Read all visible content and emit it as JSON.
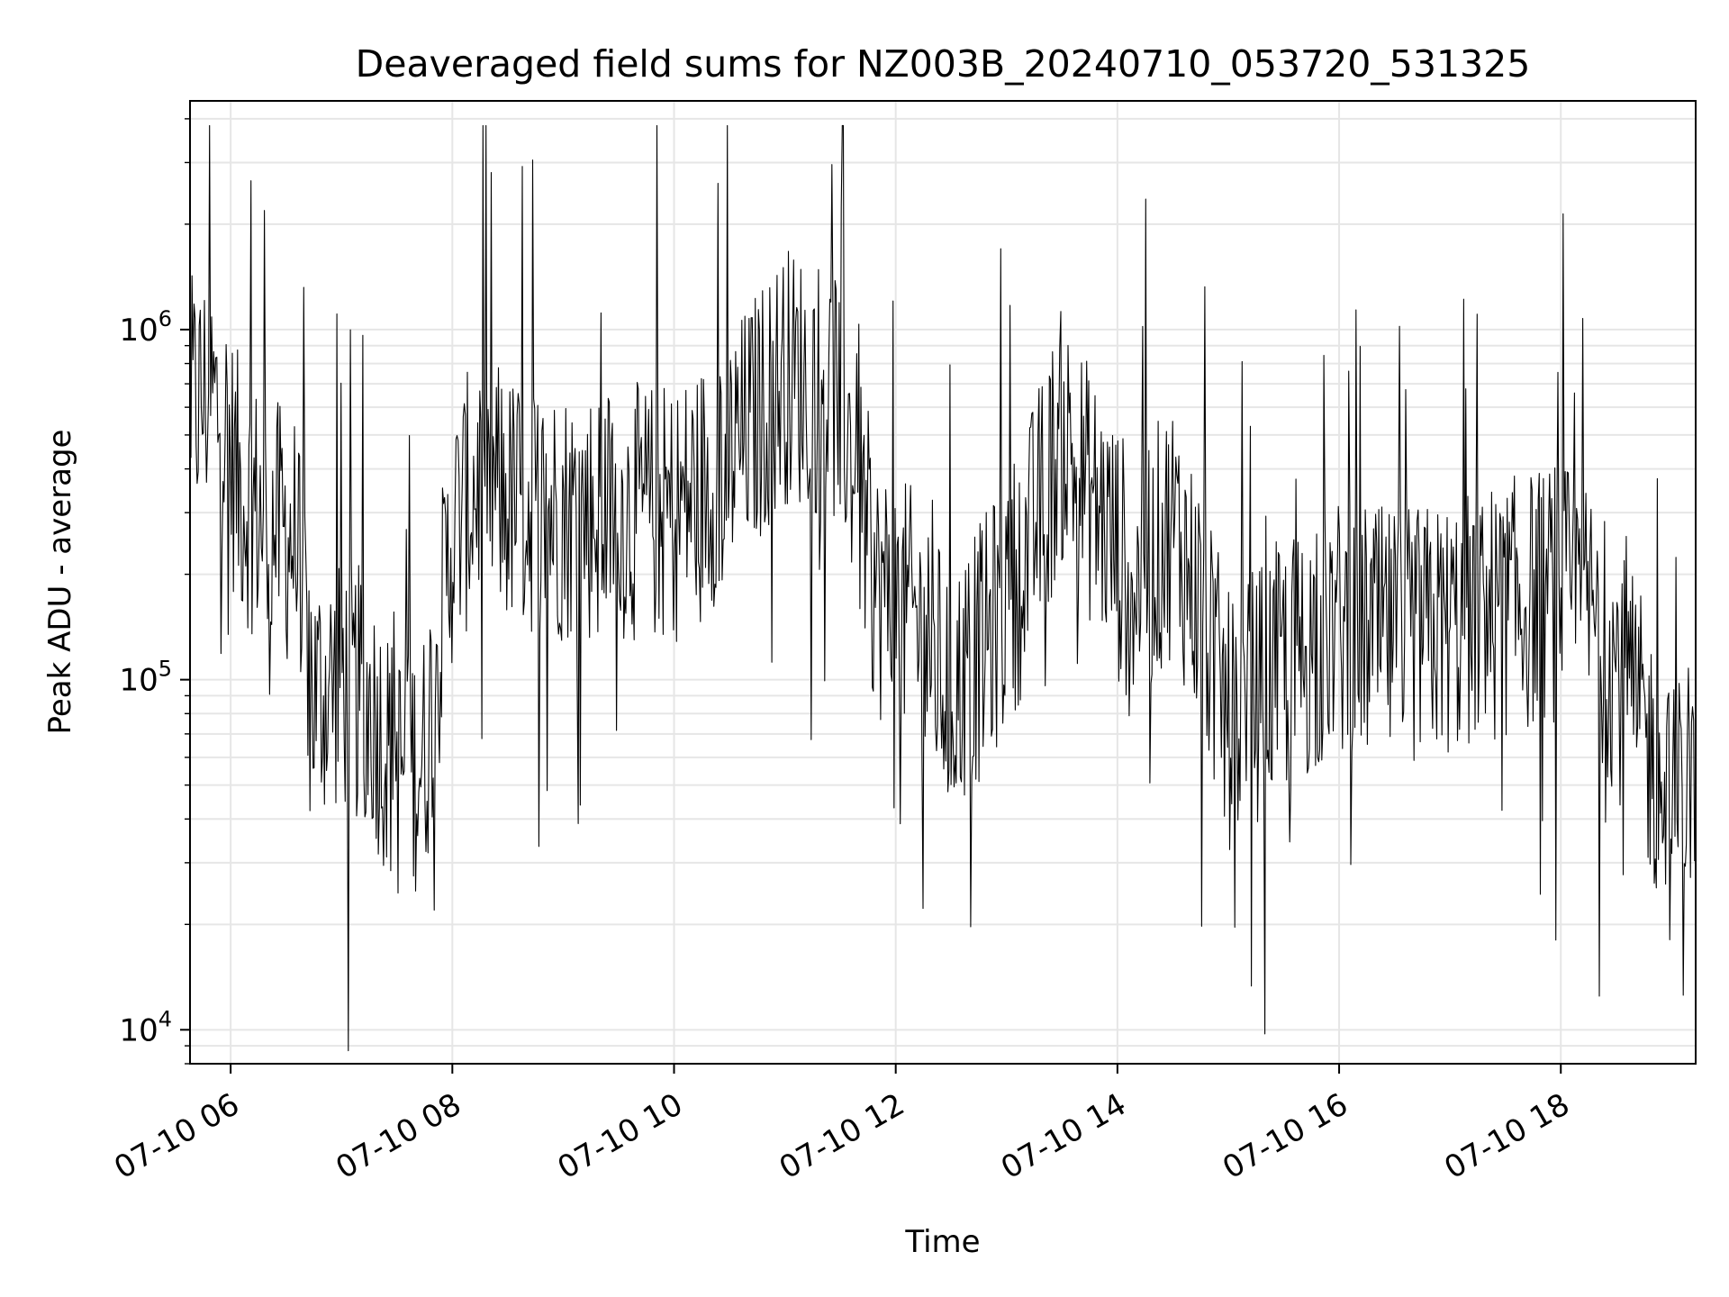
{
  "chart_data": {
    "type": "line",
    "title": "Deaveraged field sums for NZ003B_20240710_053720_531325",
    "xlabel": "Time",
    "ylabel": "Peak ADU - average",
    "yscale": "log",
    "ylim": [
      8000,
      4500000
    ],
    "xlim": [
      "2024-07-10 05:38",
      "2024-07-10 19:13"
    ],
    "grid": true,
    "line_color": "#000000",
    "x_ticks": [
      "2024-07-10 06:00",
      "2024-07-10 08:00",
      "2024-07-10 10:00",
      "2024-07-10 12:00",
      "2024-07-10 14:00",
      "2024-07-10 16:00",
      "2024-07-10 18:00"
    ],
    "x_tick_labels": [
      "07-10 06",
      "07-10 08",
      "07-10 10",
      "07-10 12",
      "07-10 14",
      "07-10 16",
      "07-10 18"
    ],
    "y_ticks": [
      10000,
      100000,
      1000000
    ],
    "y_tick_labels": [
      {
        "base": "10",
        "exp": "4"
      },
      {
        "base": "10",
        "exp": "5"
      },
      {
        "base": "10",
        "exp": "6"
      }
    ],
    "series": [
      {
        "x": [
          "2024-07-10 05:38",
          "2024-07-10 05:48",
          "2024-07-10 05:55",
          "2024-07-10 06:05",
          "2024-07-10 06:20",
          "2024-07-10 06:35",
          "2024-07-10 06:45",
          "2024-07-10 07:00",
          "2024-07-10 07:15",
          "2024-07-10 07:30",
          "2024-07-10 07:45",
          "2024-07-10 08:00",
          "2024-07-10 08:15",
          "2024-07-10 08:30",
          "2024-07-10 09:00",
          "2024-07-10 09:30",
          "2024-07-10 10:00",
          "2024-07-10 10:30",
          "2024-07-10 11:00",
          "2024-07-10 11:30",
          "2024-07-10 11:50",
          "2024-07-10 12:10",
          "2024-07-10 12:30",
          "2024-07-10 12:50",
          "2024-07-10 13:10",
          "2024-07-10 13:30",
          "2024-07-10 13:50",
          "2024-07-10 14:10",
          "2024-07-10 14:30",
          "2024-07-10 14:45",
          "2024-07-10 15:00",
          "2024-07-10 15:30",
          "2024-07-10 16:00",
          "2024-07-10 16:30",
          "2024-07-10 17:00",
          "2024-07-10 17:30",
          "2024-07-10 18:00",
          "2024-07-10 18:15",
          "2024-07-10 18:30",
          "2024-07-10 18:45",
          "2024-07-10 19:00",
          "2024-07-10 19:13"
        ],
        "y": [
          600000,
          650000,
          560000,
          350000,
          280000,
          250000,
          90000,
          100000,
          85000,
          55000,
          60000,
          260000,
          380000,
          320000,
          300000,
          300000,
          300000,
          420000,
          750000,
          650000,
          180000,
          150000,
          90000,
          130000,
          220000,
          500000,
          300000,
          180000,
          280000,
          160000,
          75000,
          110000,
          140000,
          130000,
          140000,
          160000,
          180000,
          160000,
          110000,
          70000,
          40000,
          60000
        ]
      }
    ]
  }
}
